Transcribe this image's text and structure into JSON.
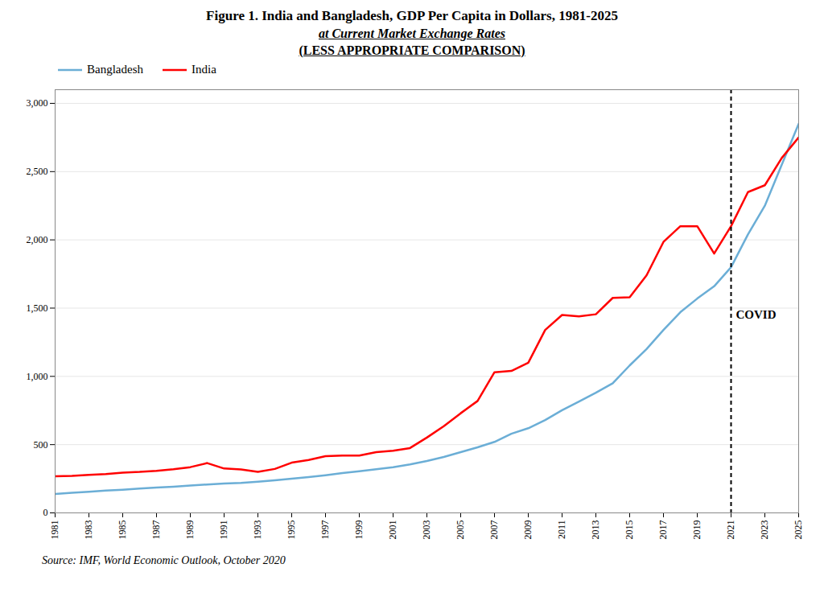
{
  "chart_data": {
    "type": "line",
    "title": "Figure 1. India and Bangladesh, GDP Per Capita in Dollars, 1981-2025",
    "subtitle": [
      "at Current Market Exchange Rates",
      "(LESS APPROPRIATE COMPARISON)"
    ],
    "caption": "Source: IMF, World Economic Outlook, October 2020",
    "x": [
      1981,
      1982,
      1983,
      1984,
      1985,
      1986,
      1987,
      1988,
      1989,
      1990,
      1991,
      1992,
      1993,
      1994,
      1995,
      1996,
      1997,
      1998,
      1999,
      2000,
      2001,
      2002,
      2003,
      2004,
      2005,
      2006,
      2007,
      2008,
      2009,
      2010,
      2011,
      2012,
      2013,
      2014,
      2015,
      2016,
      2017,
      2018,
      2019,
      2020,
      2021,
      2022,
      2023,
      2024,
      2025
    ],
    "series": [
      {
        "name": "Bangladesh",
        "color": "#6baed6",
        "values": [
          138,
          148,
          155,
          163,
          170,
          178,
          185,
          192,
          200,
          208,
          215,
          220,
          228,
          238,
          250,
          262,
          276,
          292,
          305,
          320,
          335,
          355,
          380,
          410,
          445,
          480,
          520,
          580,
          620,
          680,
          752,
          815,
          880,
          950,
          1080,
          1200,
          1340,
          1470,
          1570,
          1660,
          1800,
          2040,
          2250,
          2550,
          2850
        ]
      },
      {
        "name": "India",
        "color": "#ff0000",
        "values": [
          268,
          271,
          278,
          285,
          295,
          300,
          308,
          320,
          335,
          365,
          325,
          318,
          300,
          322,
          368,
          388,
          415,
          420,
          420,
          445,
          455,
          475,
          552,
          635,
          730,
          820,
          1030,
          1040,
          1100,
          1340,
          1450,
          1440,
          1455,
          1575,
          1580,
          1740,
          1985,
          2100,
          2100,
          1900,
          2100,
          2350,
          2400,
          2600,
          2750
        ]
      }
    ],
    "annotations": [
      {
        "text": "COVID",
        "x": 2021,
        "y": 1450,
        "line_style": "dashed"
      }
    ],
    "xlim": [
      1981,
      2025
    ],
    "xticks": [
      1981,
      1983,
      1985,
      1987,
      1989,
      1991,
      1993,
      1995,
      1997,
      1999,
      2001,
      2003,
      2005,
      2007,
      2009,
      2011,
      2013,
      2015,
      2017,
      2019,
      2021,
      2023,
      2025
    ],
    "ylim": [
      0,
      3100
    ],
    "yticks": [
      0,
      500,
      {
        "value": 1000,
        "label": "1,000"
      },
      {
        "value": 1500,
        "label": "1,500"
      },
      {
        "value": 2000,
        "label": "2,000"
      },
      {
        "value": 2500,
        "label": "2,500"
      },
      {
        "value": 3000,
        "label": "3,000"
      }
    ],
    "grid": true,
    "legend": "upper left"
  }
}
